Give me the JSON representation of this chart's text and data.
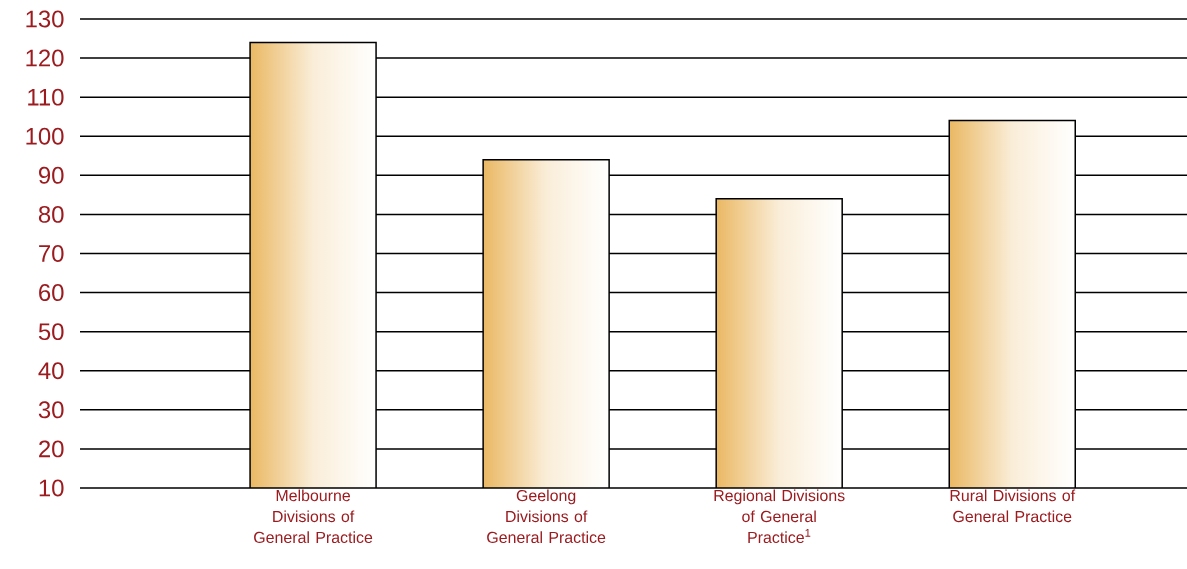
{
  "chart_data": {
    "type": "bar",
    "categories": [
      "Melbourne Divisions of General Practice",
      "Geelong Divisions of General Practice",
      "Regional Divisions of General Practice$^{1}$",
      "Rural Divisions of General Practice"
    ],
    "values": [
      124,
      94,
      84,
      104
    ],
    "color": "#eab863",
    "ylim": [
      10,
      130
    ],
    "yticks": [
      10,
      20,
      30,
      40,
      50,
      60,
      70,
      80,
      90,
      100,
      110,
      120,
      130
    ],
    "grid": "y"
  }
}
